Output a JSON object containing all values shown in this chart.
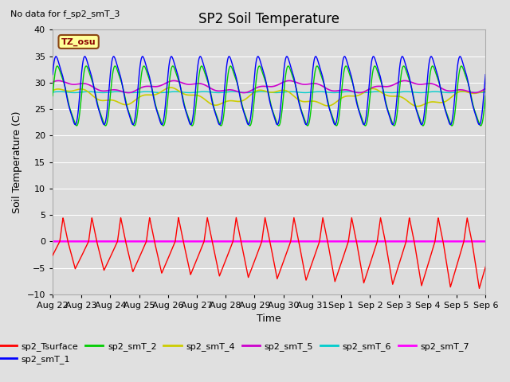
{
  "title": "SP2 Soil Temperature",
  "no_data_text": "No data for f_sp2_smT_3",
  "ylabel": "Soil Temperature (C)",
  "xlabel": "Time",
  "tz_label": "TZ_osu",
  "ylim": [
    -10,
    40
  ],
  "yticks": [
    -10,
    -5,
    0,
    5,
    10,
    15,
    20,
    25,
    30,
    35,
    40
  ],
  "num_points": 3000,
  "colors": {
    "sp2_Tsurface": "#FF0000",
    "sp2_smT_1": "#0000FF",
    "sp2_smT_2": "#00CC00",
    "sp2_smT_4": "#CCCC00",
    "sp2_smT_5": "#CC00CC",
    "sp2_smT_6": "#00CCCC",
    "sp2_smT_7": "#FF00FF"
  },
  "tick_labels": [
    "Aug 22",
    "Aug 23",
    "Aug 24",
    "Aug 25",
    "Aug 26",
    "Aug 27",
    "Aug 28",
    "Aug 29",
    "Aug 30",
    "Aug 31",
    "Sep 1",
    "Sep 2",
    "Sep 3",
    "Sep 4",
    "Sep 5",
    "Sep 6"
  ],
  "background_color": "#E0E0E0",
  "plot_bg_color": "#DCDCDC",
  "grid_color": "#FFFFFF",
  "title_fontsize": 12,
  "label_fontsize": 9,
  "tick_fontsize": 8
}
